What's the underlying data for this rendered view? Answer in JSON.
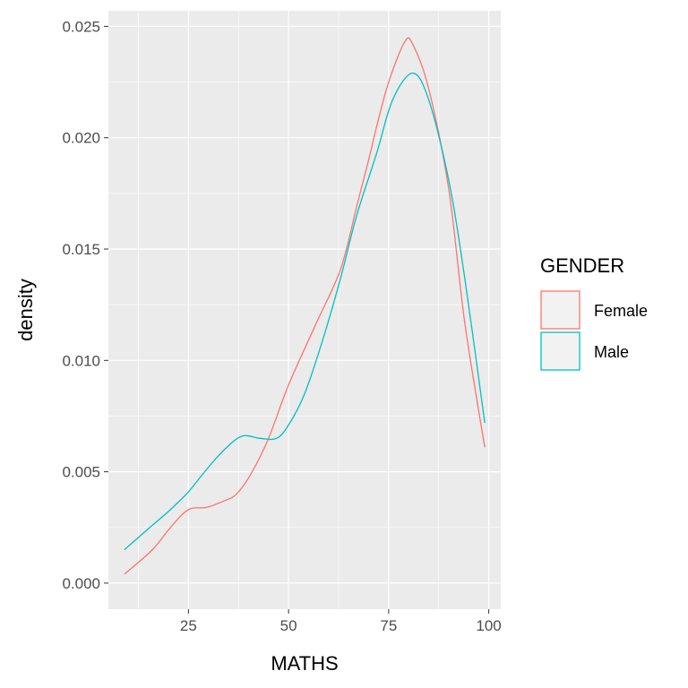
{
  "chart_data": {
    "type": "line",
    "title": "",
    "xlabel": "MATHS",
    "ylabel": "density",
    "xlim": [
      5,
      103
    ],
    "ylim": [
      -0.00117,
      0.0257
    ],
    "x_ticks": [
      25,
      50,
      75,
      100
    ],
    "x_tick_labels": [
      "25",
      "50",
      "75",
      "100"
    ],
    "y_ticks": [
      0,
      0.005,
      0.01,
      0.015,
      0.02,
      0.025
    ],
    "y_tick_labels": [
      "0.000",
      "0.005",
      "0.010",
      "0.015",
      "0.020",
      "0.025"
    ],
    "grid": true,
    "legend": {
      "title": "GENDER",
      "placement": "right"
    },
    "series": [
      {
        "name": "Female",
        "color": "#F8766D",
        "x": [
          9,
          16,
          20.5,
          25,
          29.5,
          34,
          37,
          40.6,
          45,
          50,
          57,
          63,
          67,
          70,
          72,
          75,
          79,
          81,
          85,
          90,
          94,
          99
        ],
        "y": [
          0.0004,
          0.0015,
          0.0025,
          0.0033,
          0.0034,
          0.0037,
          0.004,
          0.0049,
          0.0065,
          0.0089,
          0.0117,
          0.0141,
          0.0169,
          0.019,
          0.0205,
          0.0225,
          0.0243,
          0.0242,
          0.0222,
          0.0177,
          0.0117,
          0.0061
        ]
      },
      {
        "name": "Male",
        "color": "#00BFC4",
        "x": [
          9,
          16,
          20.5,
          25,
          29.5,
          34,
          38.4,
          42.9,
          47,
          50,
          54,
          58.5,
          63,
          67,
          72,
          76,
          81,
          85,
          90,
          94,
          99
        ],
        "y": [
          0.0015,
          0.0026,
          0.0033,
          0.0041,
          0.0051,
          0.006,
          0.0066,
          0.0065,
          0.0065,
          0.0071,
          0.0085,
          0.0109,
          0.0137,
          0.0165,
          0.0193,
          0.0217,
          0.0229,
          0.0217,
          0.0181,
          0.0137,
          0.0072
        ]
      }
    ]
  }
}
